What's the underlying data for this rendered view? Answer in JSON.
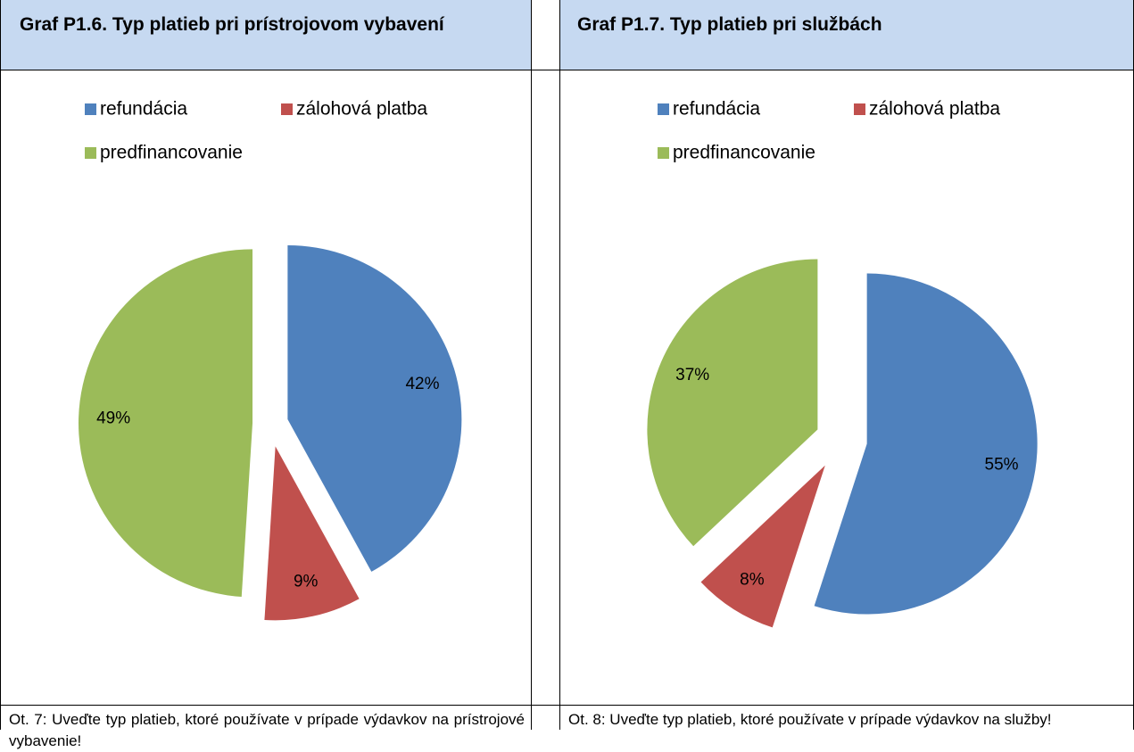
{
  "chart_data": [
    {
      "type": "pie",
      "title": "Graf P1.6. Typ platieb pri prístrojovom vybavení",
      "categories": [
        "refundácia",
        "zálohová platba",
        "predfinancovanie"
      ],
      "values": [
        42,
        9,
        49
      ],
      "value_labels": [
        "42%",
        "9%",
        "49%"
      ],
      "colors": [
        "#4f81bd",
        "#c0504d",
        "#9bbb59"
      ],
      "caption": "Ot. 7: Uveďte typ platieb, ktoré používate v prípade výdavkov na prístrojové vybavenie!"
    },
    {
      "type": "pie",
      "title": "Graf P1.7. Typ platieb pri službách",
      "categories": [
        "refundácia",
        "zálohová platba",
        "predfinancovanie"
      ],
      "values": [
        55,
        8,
        37
      ],
      "value_labels": [
        "55%",
        "8%",
        "37%"
      ],
      "colors": [
        "#4f81bd",
        "#c0504d",
        "#9bbb59"
      ],
      "caption": "Ot. 8: Uveďte typ platieb, ktoré používate v prípade výdavkov na služby!"
    }
  ]
}
